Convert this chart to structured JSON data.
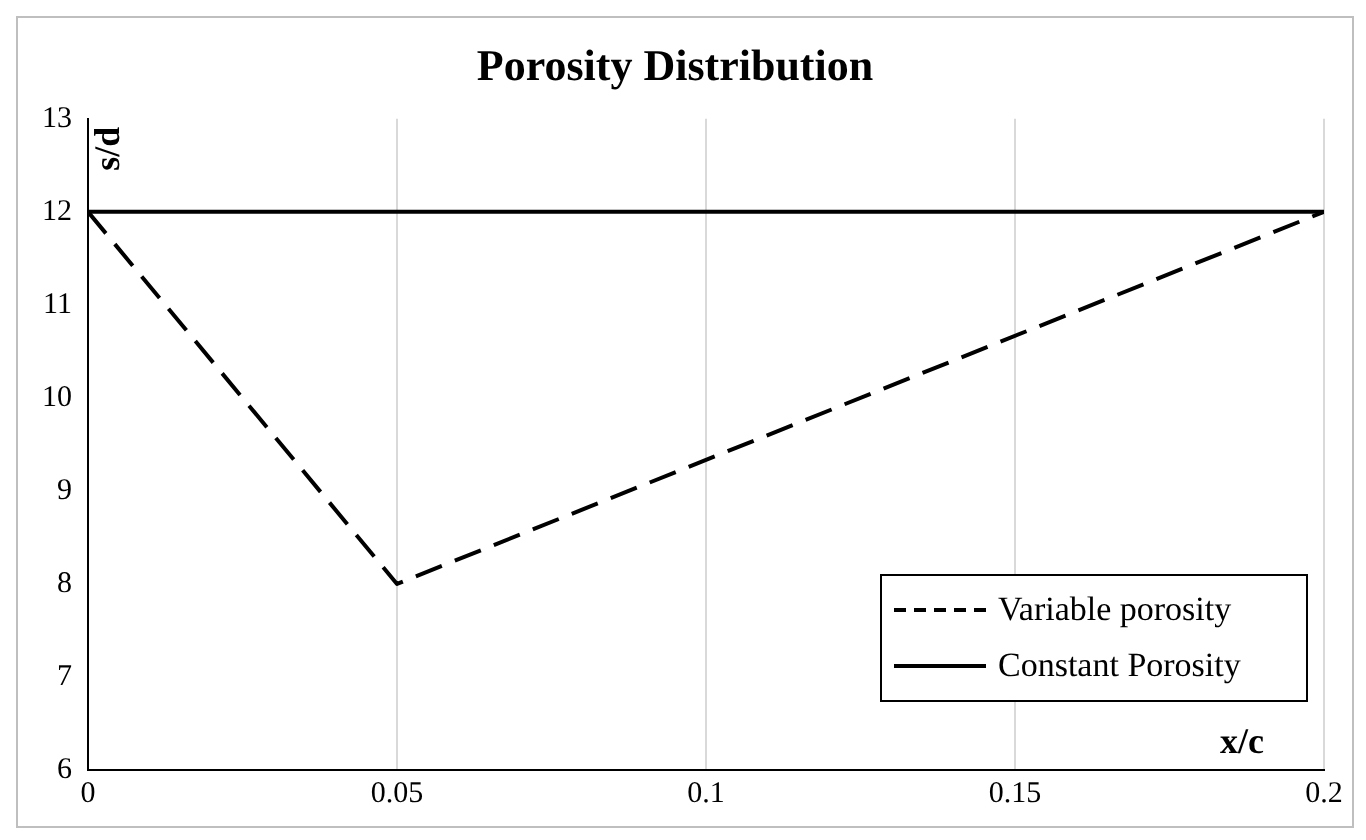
{
  "chart_data": {
    "type": "line",
    "title": "Porosity Distribution",
    "xlabel": "x/c",
    "ylabel": "s/d",
    "xlim": [
      0,
      0.2
    ],
    "xticks": [
      0,
      0.05,
      0.1,
      0.15,
      0.2
    ],
    "ylim": [
      6,
      13
    ],
    "yticks": [
      6,
      7,
      8,
      9,
      10,
      11,
      12,
      13
    ],
    "grid": "x",
    "legend": "bottom right",
    "marker": "none",
    "series": [
      {
        "name": "Variable porosity",
        "color": "#000000",
        "line_style": "dashed",
        "x": [
          0,
          0.05,
          0.2
        ],
        "values": [
          12,
          8,
          12
        ]
      },
      {
        "name": "Constant Porosity",
        "color": "#000000",
        "line_style": "solid",
        "x": [
          0,
          0.2
        ],
        "values": [
          12,
          12
        ]
      }
    ]
  }
}
